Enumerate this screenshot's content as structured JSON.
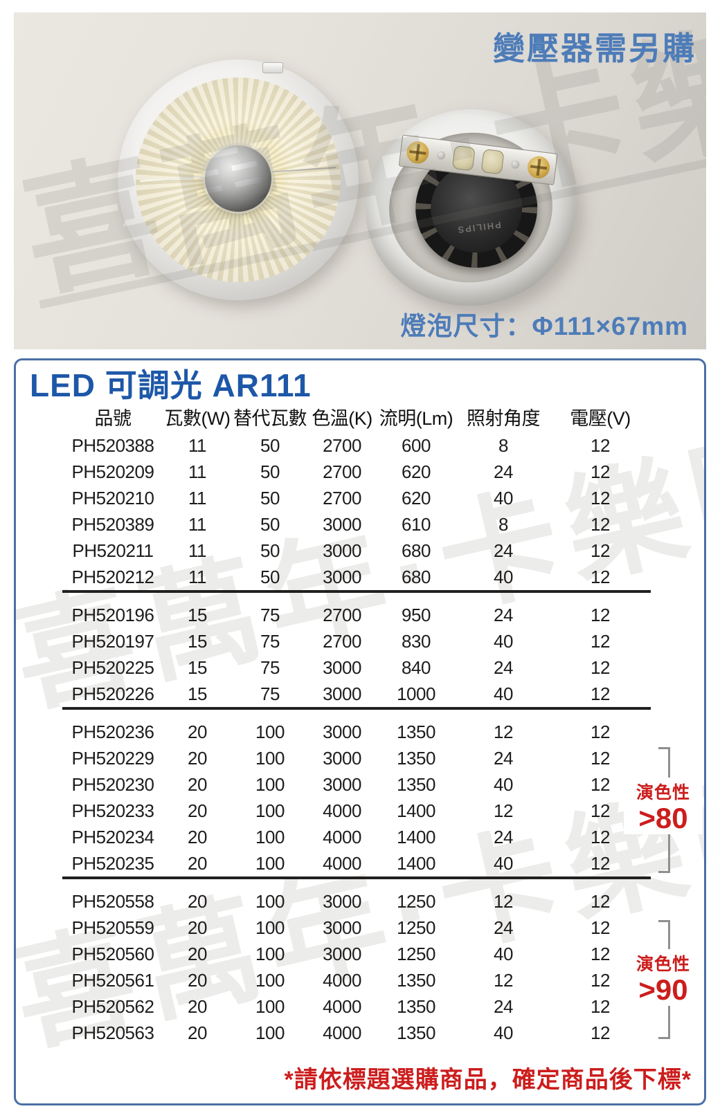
{
  "watermark": "喜萬年·卡樂購物",
  "photo": {
    "note_top": "變壓器需另購",
    "size_label": "燈泡尺寸：Φ111×67mm",
    "brand_text": "PHILIPS"
  },
  "panel": {
    "title": "LED 可調光 AR111",
    "columns": [
      "品號",
      "瓦數(W)",
      "替代瓦數",
      "色溫(K)",
      "流明(Lm)",
      "照射角度",
      "電壓(V)"
    ],
    "groups": [
      [
        [
          "PH520388",
          "11",
          "50",
          "2700",
          "600",
          "8",
          "12"
        ],
        [
          "PH520209",
          "11",
          "50",
          "2700",
          "620",
          "24",
          "12"
        ],
        [
          "PH520210",
          "11",
          "50",
          "2700",
          "620",
          "40",
          "12"
        ],
        [
          "PH520389",
          "11",
          "50",
          "3000",
          "610",
          "8",
          "12"
        ],
        [
          "PH520211",
          "11",
          "50",
          "3000",
          "680",
          "24",
          "12"
        ],
        [
          "PH520212",
          "11",
          "50",
          "3000",
          "680",
          "40",
          "12"
        ]
      ],
      [
        [
          "PH520196",
          "15",
          "75",
          "2700",
          "950",
          "24",
          "12"
        ],
        [
          "PH520197",
          "15",
          "75",
          "2700",
          "830",
          "40",
          "12"
        ],
        [
          "PH520225",
          "15",
          "75",
          "3000",
          "840",
          "24",
          "12"
        ],
        [
          "PH520226",
          "15",
          "75",
          "3000",
          "1000",
          "40",
          "12"
        ]
      ],
      [
        [
          "PH520236",
          "20",
          "100",
          "3000",
          "1350",
          "12",
          "12"
        ],
        [
          "PH520229",
          "20",
          "100",
          "3000",
          "1350",
          "24",
          "12"
        ],
        [
          "PH520230",
          "20",
          "100",
          "3000",
          "1350",
          "40",
          "12"
        ],
        [
          "PH520233",
          "20",
          "100",
          "4000",
          "1400",
          "12",
          "12"
        ],
        [
          "PH520234",
          "20",
          "100",
          "4000",
          "1400",
          "24",
          "12"
        ],
        [
          "PH520235",
          "20",
          "100",
          "4000",
          "1400",
          "40",
          "12"
        ]
      ],
      [
        [
          "PH520558",
          "20",
          "100",
          "3000",
          "1250",
          "12",
          "12"
        ],
        [
          "PH520559",
          "20",
          "100",
          "3000",
          "1250",
          "24",
          "12"
        ],
        [
          "PH520560",
          "20",
          "100",
          "3000",
          "1250",
          "40",
          "12"
        ],
        [
          "PH520561",
          "20",
          "100",
          "4000",
          "1350",
          "12",
          "12"
        ],
        [
          "PH520562",
          "20",
          "100",
          "4000",
          "1350",
          "24",
          "12"
        ],
        [
          "PH520563",
          "20",
          "100",
          "4000",
          "1350",
          "40",
          "12"
        ]
      ]
    ],
    "annotations": [
      {
        "label": "演色性",
        "value": ">80"
      },
      {
        "label": "演色性",
        "value": ">90"
      }
    ],
    "footnote": "*請依標題選購商品，確定商品後下標*"
  },
  "colors": {
    "accent_blue": "#1d57a8",
    "border_blue": "#4a6fa5",
    "photo_text_blue": "#4d7cb8",
    "red": "#cc1d1d",
    "table_text": "#1f1c1c",
    "bracket_gray": "#8f8f8f"
  }
}
